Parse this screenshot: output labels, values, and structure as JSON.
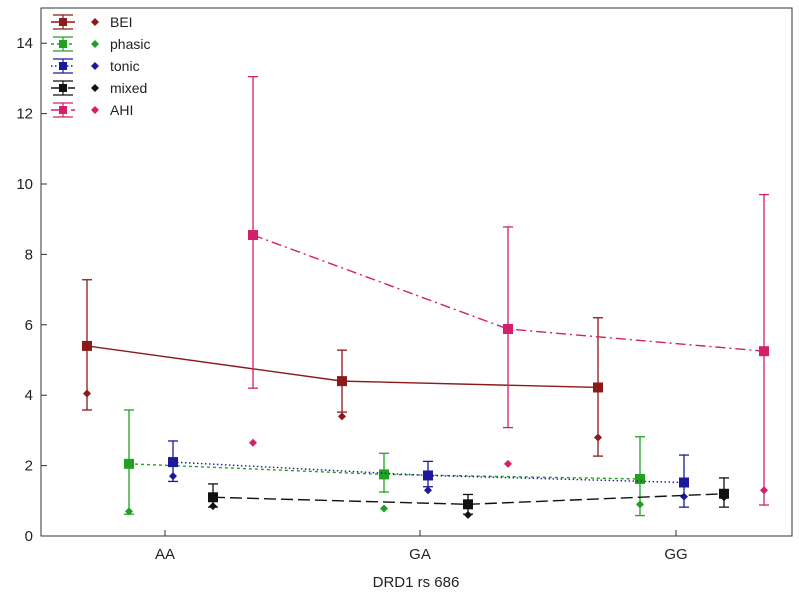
{
  "chart_data": {
    "type": "line",
    "xlabel": "DRD1 rs 686",
    "ylabel": "",
    "ylim": [
      0,
      15
    ],
    "yticks": [
      0,
      2,
      4,
      6,
      8,
      10,
      12,
      14
    ],
    "categories": [
      "AA",
      "GA",
      "GG"
    ],
    "grid": false,
    "legend_position": "top-left",
    "series": [
      {
        "name": "BEI",
        "color": "#8b1a1a",
        "dash": "solid",
        "means": [
          5.4,
          4.4,
          4.22
        ],
        "lower": [
          3.58,
          3.52,
          2.27
        ],
        "upper": [
          7.28,
          5.28,
          6.2
        ],
        "medians": [
          4.05,
          3.4,
          2.8
        ]
      },
      {
        "name": "phasic",
        "color": "#22a022",
        "dash": "dotted",
        "means": [
          2.05,
          1.75,
          1.62
        ],
        "lower": [
          0.62,
          1.25,
          0.58
        ],
        "upper": [
          3.58,
          2.35,
          2.82
        ],
        "medians": [
          0.7,
          0.78,
          0.9
        ]
      },
      {
        "name": "tonic",
        "color": "#1a1a9a",
        "dash": "dot",
        "means": [
          2.1,
          1.72,
          1.52
        ],
        "lower": [
          1.55,
          1.4,
          0.82
        ],
        "upper": [
          2.7,
          2.12,
          2.3
        ],
        "medians": [
          1.7,
          1.3,
          1.12
        ]
      },
      {
        "name": "mixed",
        "color": "#111111",
        "dash": "longdash",
        "means": [
          1.1,
          0.9,
          1.2
        ],
        "lower": [
          0.82,
          0.62,
          0.82
        ],
        "upper": [
          1.48,
          1.18,
          1.65
        ],
        "medians": [
          0.85,
          0.6,
          1.1
        ]
      },
      {
        "name": "AHI",
        "color": "#d4206a",
        "dash": "dashdot",
        "means": [
          8.55,
          5.88,
          5.25
        ],
        "lower": [
          4.2,
          3.08,
          0.88
        ],
        "upper": [
          13.05,
          8.78,
          9.7
        ],
        "medians": [
          2.65,
          2.05,
          1.3
        ]
      }
    ]
  }
}
